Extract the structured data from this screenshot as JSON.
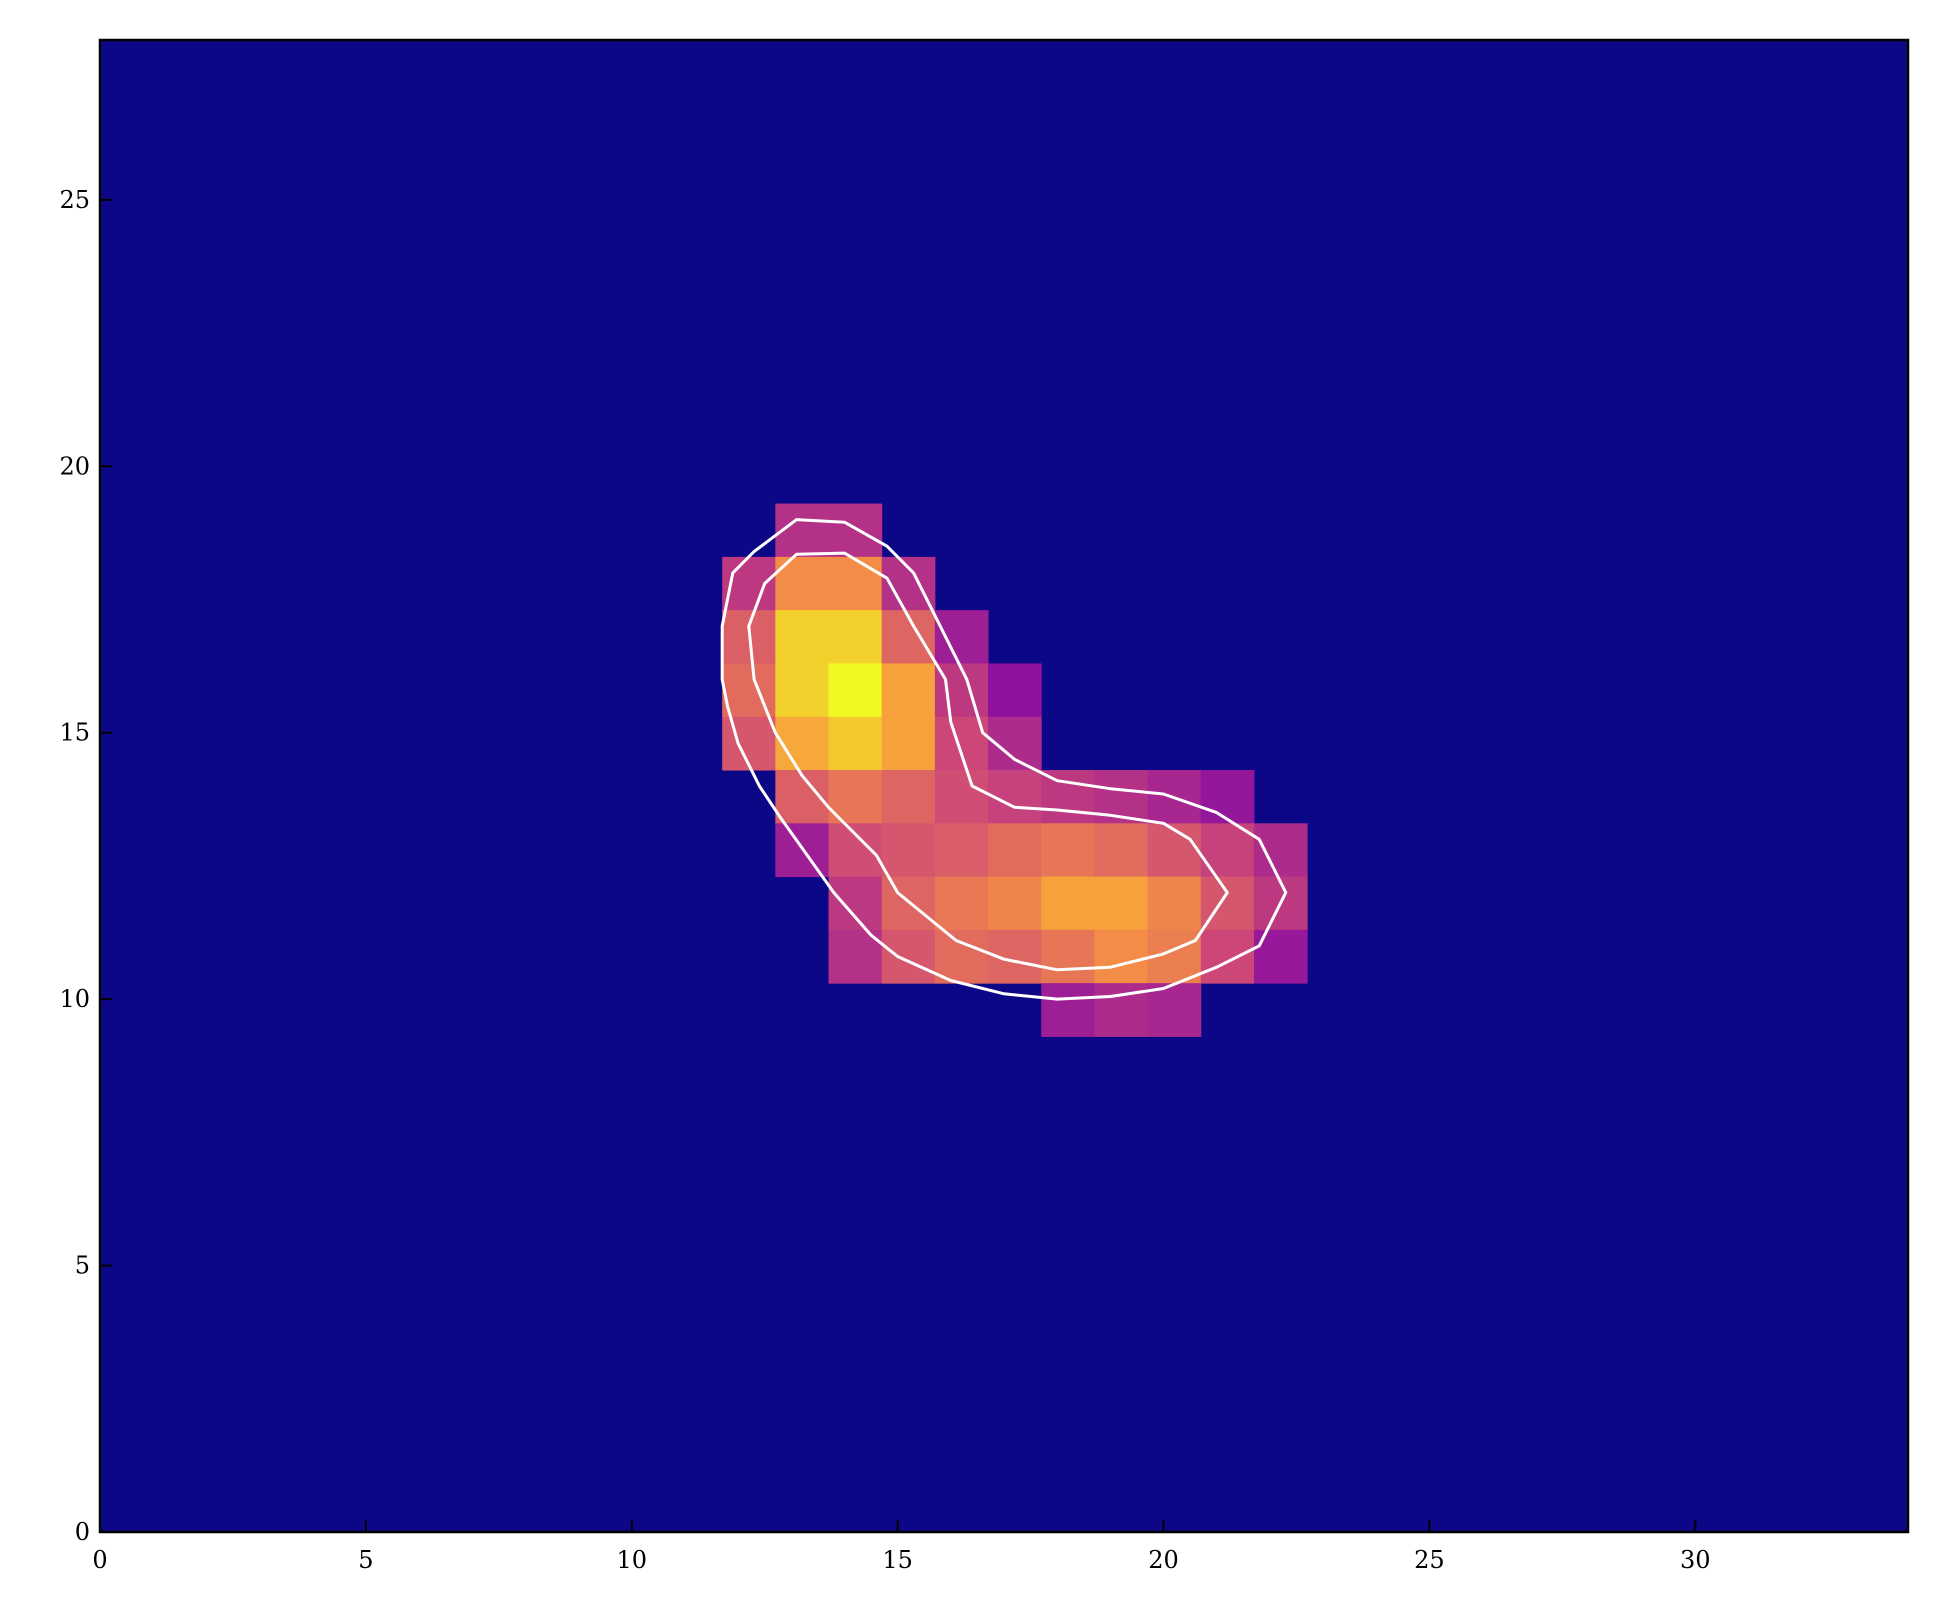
{
  "chart_data": {
    "type": "heatmap",
    "title": "",
    "xlabel": "",
    "ylabel": "",
    "xlim": [
      0,
      34
    ],
    "ylim": [
      0,
      28
    ],
    "x_ticks": [
      0,
      5,
      10,
      15,
      20,
      25,
      30
    ],
    "y_ticks": [
      0,
      5,
      10,
      15,
      20,
      25
    ],
    "x_tick_labels": [
      "0",
      "5",
      "10",
      "15",
      "20",
      "25",
      "30"
    ],
    "y_tick_labels": [
      "0",
      "5",
      "10",
      "15",
      "20",
      "25"
    ],
    "colormap": "plasma",
    "background_value": 0,
    "cells": [
      {
        "x": 13.2,
        "y": 18.8,
        "v": 0.42
      },
      {
        "x": 14.2,
        "y": 18.8,
        "v": 0.42
      },
      {
        "x": 12.2,
        "y": 17.8,
        "v": 0.45
      },
      {
        "x": 13.2,
        "y": 17.8,
        "v": 0.72
      },
      {
        "x": 14.2,
        "y": 17.8,
        "v": 0.72
      },
      {
        "x": 15.2,
        "y": 17.8,
        "v": 0.42
      },
      {
        "x": 12.2,
        "y": 16.8,
        "v": 0.58
      },
      {
        "x": 13.2,
        "y": 16.8,
        "v": 0.9
      },
      {
        "x": 14.2,
        "y": 16.8,
        "v": 0.9
      },
      {
        "x": 15.2,
        "y": 16.8,
        "v": 0.6
      },
      {
        "x": 16.2,
        "y": 16.8,
        "v": 0.35
      },
      {
        "x": 12.2,
        "y": 15.8,
        "v": 0.62
      },
      {
        "x": 13.2,
        "y": 15.8,
        "v": 0.9
      },
      {
        "x": 14.2,
        "y": 15.8,
        "v": 1.0
      },
      {
        "x": 15.2,
        "y": 15.8,
        "v": 0.78
      },
      {
        "x": 16.2,
        "y": 15.8,
        "v": 0.45
      },
      {
        "x": 17.2,
        "y": 15.8,
        "v": 0.3
      },
      {
        "x": 12.2,
        "y": 14.8,
        "v": 0.55
      },
      {
        "x": 13.2,
        "y": 14.8,
        "v": 0.8
      },
      {
        "x": 14.2,
        "y": 14.8,
        "v": 0.88
      },
      {
        "x": 15.2,
        "y": 14.8,
        "v": 0.78
      },
      {
        "x": 16.2,
        "y": 14.8,
        "v": 0.5
      },
      {
        "x": 17.2,
        "y": 14.8,
        "v": 0.4
      },
      {
        "x": 13.2,
        "y": 13.8,
        "v": 0.58
      },
      {
        "x": 14.2,
        "y": 13.8,
        "v": 0.65
      },
      {
        "x": 15.2,
        "y": 13.8,
        "v": 0.6
      },
      {
        "x": 16.2,
        "y": 13.8,
        "v": 0.52
      },
      {
        "x": 17.2,
        "y": 13.8,
        "v": 0.48
      },
      {
        "x": 18.2,
        "y": 13.8,
        "v": 0.45
      },
      {
        "x": 19.2,
        "y": 13.8,
        "v": 0.42
      },
      {
        "x": 20.2,
        "y": 13.8,
        "v": 0.38
      },
      {
        "x": 21.2,
        "y": 13.8,
        "v": 0.32
      },
      {
        "x": 13.2,
        "y": 12.8,
        "v": 0.35
      },
      {
        "x": 14.2,
        "y": 12.8,
        "v": 0.52
      },
      {
        "x": 15.2,
        "y": 12.8,
        "v": 0.55
      },
      {
        "x": 16.2,
        "y": 12.8,
        "v": 0.57
      },
      {
        "x": 17.2,
        "y": 12.8,
        "v": 0.62
      },
      {
        "x": 18.2,
        "y": 12.8,
        "v": 0.65
      },
      {
        "x": 19.2,
        "y": 12.8,
        "v": 0.62
      },
      {
        "x": 20.2,
        "y": 12.8,
        "v": 0.55
      },
      {
        "x": 21.2,
        "y": 12.8,
        "v": 0.48
      },
      {
        "x": 22.2,
        "y": 12.8,
        "v": 0.4
      },
      {
        "x": 14.2,
        "y": 11.8,
        "v": 0.45
      },
      {
        "x": 15.2,
        "y": 11.8,
        "v": 0.6
      },
      {
        "x": 16.2,
        "y": 11.8,
        "v": 0.66
      },
      {
        "x": 17.2,
        "y": 11.8,
        "v": 0.7
      },
      {
        "x": 18.2,
        "y": 11.8,
        "v": 0.78
      },
      {
        "x": 19.2,
        "y": 11.8,
        "v": 0.78
      },
      {
        "x": 20.2,
        "y": 11.8,
        "v": 0.7
      },
      {
        "x": 21.2,
        "y": 11.8,
        "v": 0.55
      },
      {
        "x": 22.2,
        "y": 11.8,
        "v": 0.45
      },
      {
        "x": 14.2,
        "y": 10.8,
        "v": 0.42
      },
      {
        "x": 15.2,
        "y": 10.8,
        "v": 0.55
      },
      {
        "x": 16.2,
        "y": 10.8,
        "v": 0.62
      },
      {
        "x": 17.2,
        "y": 10.8,
        "v": 0.6
      },
      {
        "x": 18.2,
        "y": 10.8,
        "v": 0.65
      },
      {
        "x": 19.2,
        "y": 10.8,
        "v": 0.72
      },
      {
        "x": 20.2,
        "y": 10.8,
        "v": 0.68
      },
      {
        "x": 21.2,
        "y": 10.8,
        "v": 0.5
      },
      {
        "x": 22.2,
        "y": 10.8,
        "v": 0.33
      },
      {
        "x": 18.2,
        "y": 9.8,
        "v": 0.35
      },
      {
        "x": 19.2,
        "y": 9.8,
        "v": 0.4
      },
      {
        "x": 20.2,
        "y": 9.8,
        "v": 0.38
      }
    ],
    "contours": [
      {
        "level": "outer",
        "points": [
          [
            11.7,
            17
          ],
          [
            11.9,
            18
          ],
          [
            12.3,
            18.4
          ],
          [
            13.1,
            19
          ],
          [
            14,
            18.95
          ],
          [
            14.8,
            18.5
          ],
          [
            15.3,
            18
          ],
          [
            15.8,
            17
          ],
          [
            16.3,
            16
          ],
          [
            16.6,
            15
          ],
          [
            17.2,
            14.5
          ],
          [
            18,
            14.1
          ],
          [
            19,
            13.95
          ],
          [
            20,
            13.85
          ],
          [
            21,
            13.5
          ],
          [
            21.8,
            13
          ],
          [
            22.3,
            12
          ],
          [
            21.8,
            11
          ],
          [
            21,
            10.6
          ],
          [
            20,
            10.2
          ],
          [
            19,
            10.05
          ],
          [
            18,
            10
          ],
          [
            17,
            10.1
          ],
          [
            16,
            10.35
          ],
          [
            15,
            10.8
          ],
          [
            14.5,
            11.2
          ],
          [
            13.8,
            12
          ],
          [
            13.3,
            12.7
          ],
          [
            12.8,
            13.4
          ],
          [
            12.4,
            14
          ],
          [
            12,
            14.8
          ],
          [
            11.8,
            15.5
          ],
          [
            11.7,
            16
          ]
        ]
      },
      {
        "level": "inner",
        "points": [
          [
            12.2,
            17
          ],
          [
            12.5,
            17.8
          ],
          [
            13.1,
            18.35
          ],
          [
            14,
            18.37
          ],
          [
            14.8,
            17.9
          ],
          [
            15.3,
            17
          ],
          [
            15.9,
            16
          ],
          [
            16,
            15.2
          ],
          [
            16.4,
            14
          ],
          [
            17.2,
            13.6
          ],
          [
            18,
            13.55
          ],
          [
            19,
            13.45
          ],
          [
            20,
            13.3
          ],
          [
            20.5,
            13
          ],
          [
            21.2,
            12
          ],
          [
            20.6,
            11.1
          ],
          [
            20,
            10.85
          ],
          [
            19,
            10.6
          ],
          [
            18,
            10.55
          ],
          [
            17,
            10.75
          ],
          [
            16.1,
            11.1
          ],
          [
            15,
            12
          ],
          [
            14.6,
            12.7
          ],
          [
            14.2,
            13.1
          ],
          [
            13.7,
            13.6
          ],
          [
            13.2,
            14.2
          ],
          [
            12.7,
            15
          ],
          [
            12.3,
            16
          ]
        ]
      }
    ]
  }
}
